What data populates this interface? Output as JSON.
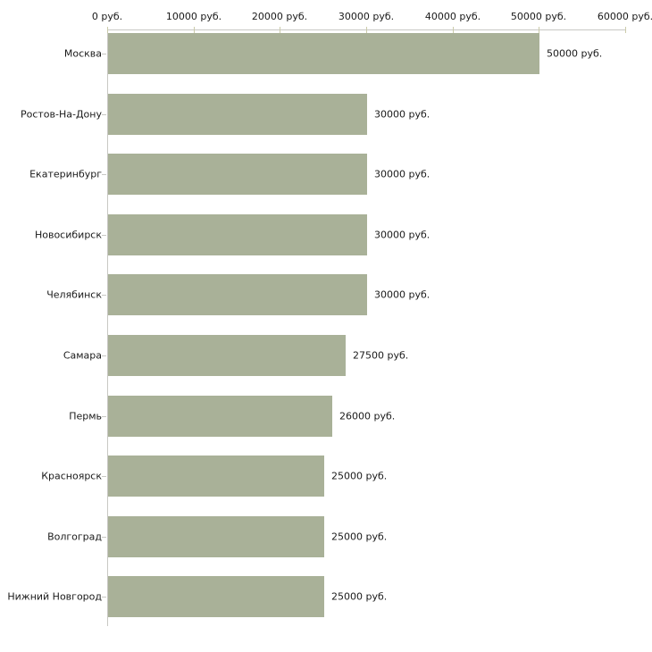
{
  "chart_data": {
    "type": "bar",
    "orientation": "horizontal",
    "title": "",
    "xlabel": "",
    "ylabel": "",
    "grid": false,
    "legend": "none",
    "categories": [
      "Москва",
      "Ростов-На-Дону",
      "Екатеринбург",
      "Новосибирск",
      "Челябинск",
      "Самара",
      "Пермь",
      "Красноярск",
      "Волгоград",
      "Нижний Новгород"
    ],
    "values": [
      50000,
      30000,
      30000,
      30000,
      30000,
      27500,
      26000,
      25000,
      25000,
      25000
    ],
    "value_labels": [
      "50000 руб.",
      "30000 руб.",
      "30000 руб.",
      "30000 руб.",
      "30000 руб.",
      "27500 руб.",
      "26000 руб.",
      "25000 руб.",
      "25000 руб.",
      "25000 руб."
    ],
    "xlim": [
      0,
      60000
    ],
    "x_ticks": [
      0,
      10000,
      20000,
      30000,
      40000,
      50000,
      60000
    ],
    "x_tick_labels": [
      "0 руб.",
      "10000 руб.",
      "20000 руб.",
      "30000 руб.",
      "40000 руб.",
      "50000 руб.",
      "60000 руб."
    ],
    "colors": {
      "bar_fill": "#a9b198",
      "axis_line": "#c8c8c4",
      "x_tick_mark": "#cbcbaa",
      "text": "#1a1a1a",
      "background": "#ffffff"
    }
  }
}
